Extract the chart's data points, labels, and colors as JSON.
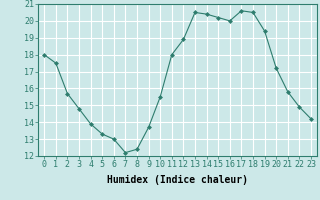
{
  "x": [
    0,
    1,
    2,
    3,
    4,
    5,
    6,
    7,
    8,
    9,
    10,
    11,
    12,
    13,
    14,
    15,
    16,
    17,
    18,
    19,
    20,
    21,
    22,
    23
  ],
  "y": [
    18,
    17.5,
    15.7,
    14.8,
    13.9,
    13.3,
    13.0,
    12.2,
    12.4,
    13.7,
    15.5,
    18.0,
    18.9,
    20.5,
    20.4,
    20.2,
    20.0,
    20.6,
    20.5,
    19.4,
    17.2,
    15.8,
    14.9,
    14.2
  ],
  "line_color": "#2e7d6e",
  "marker": "D",
  "marker_size": 2,
  "bg_color": "#cce8e8",
  "grid_color": "#ffffff",
  "xlabel": "Humidex (Indice chaleur)",
  "xlabel_fontsize": 7,
  "tick_fontsize": 6,
  "ylim": [
    12,
    21
  ],
  "xlim": [
    -0.5,
    23.5
  ],
  "yticks": [
    12,
    13,
    14,
    15,
    16,
    17,
    18,
    19,
    20,
    21
  ],
  "xticks": [
    0,
    1,
    2,
    3,
    4,
    5,
    6,
    7,
    8,
    9,
    10,
    11,
    12,
    13,
    14,
    15,
    16,
    17,
    18,
    19,
    20,
    21,
    22,
    23
  ]
}
